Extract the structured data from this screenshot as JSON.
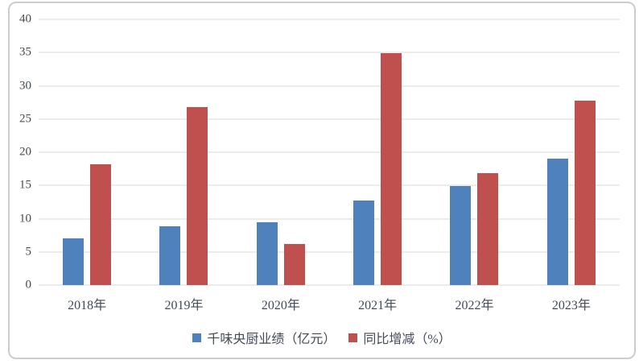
{
  "chart_data": {
    "type": "bar",
    "title": "",
    "xlabel": "",
    "ylabel": "",
    "categories": [
      "2018年",
      "2019年",
      "2020年",
      "2021年",
      "2022年",
      "2023年"
    ],
    "series": [
      {
        "name": "千味央厨业绩（亿元）",
        "color": "#4F81BD",
        "values": [
          7.01,
          8.89,
          9.44,
          12.74,
          14.89,
          19.01
        ]
      },
      {
        "name": "同比增减（%）",
        "color": "#C0504D",
        "values": [
          18.2,
          26.8,
          6.2,
          34.9,
          16.9,
          27.7
        ]
      }
    ],
    "ylim": [
      0,
      40
    ],
    "yticks": [
      0,
      5,
      10,
      15,
      20,
      25,
      30,
      35,
      40
    ],
    "grid": true,
    "legend_position": "bottom"
  },
  "colors": {
    "series_blue": "#4F81BD",
    "series_red": "#C0504D",
    "gridline": "#DADADA",
    "text": "#414B57",
    "frame_border": "#CDCDCD",
    "background": "#FFFFFF"
  }
}
